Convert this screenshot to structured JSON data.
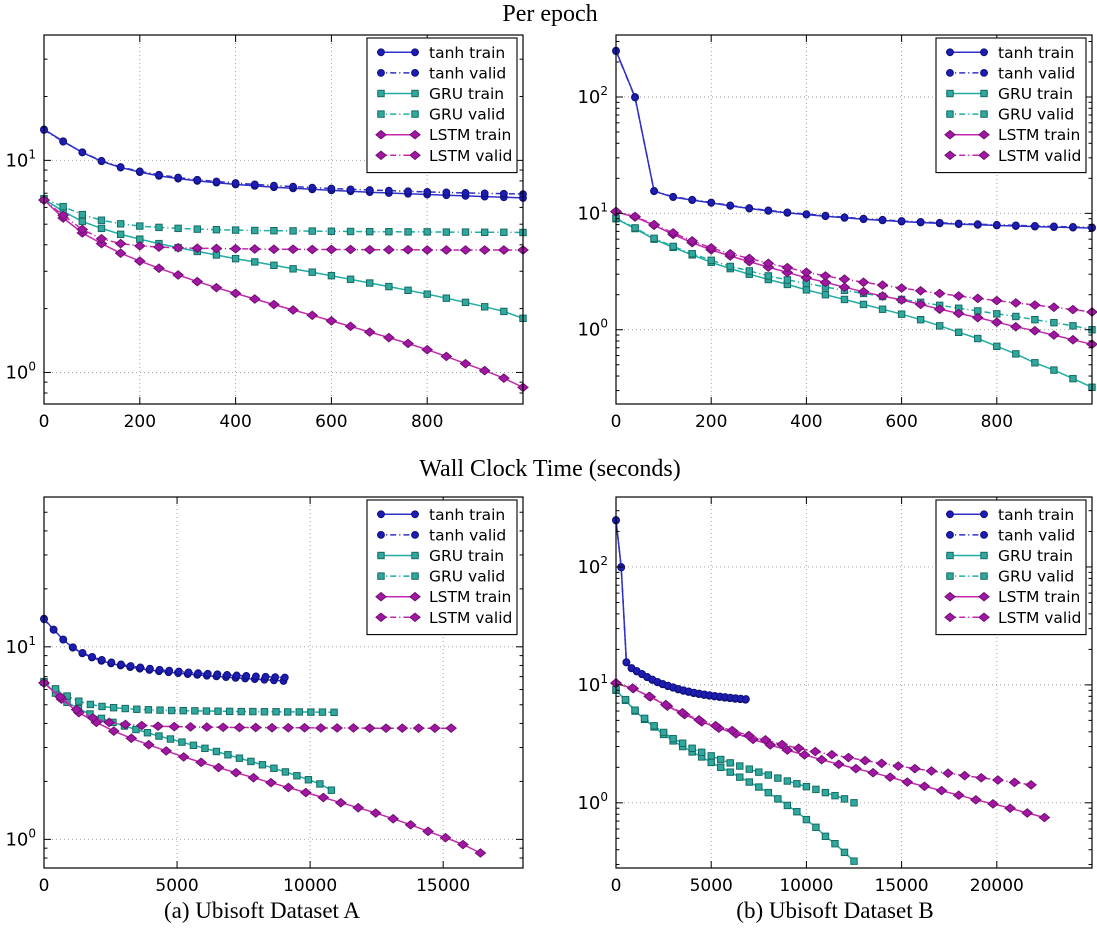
{
  "titles": {
    "per_epoch": "Per epoch",
    "wall_clock": "Wall Clock Time (seconds)"
  },
  "captions": {
    "a": "(a) Ubisoft Dataset A",
    "b": "(b) Ubisoft Dataset B"
  },
  "palette": {
    "tanh": {
      "line": "#3030c8",
      "fill": "#1d1db4",
      "edge": "#101078"
    },
    "gru": {
      "line": "#20ada3",
      "fill": "#30a89e",
      "edge": "#156b64"
    },
    "lstm": {
      "line": "#c428ae",
      "fill": "#a117a3",
      "edge": "#70106f"
    }
  },
  "legend_labels": [
    "tanh train",
    "tanh valid",
    "GRU train",
    "GRU valid",
    "LSTM train",
    "LSTM valid"
  ],
  "chart_data": [
    {
      "id": "tl",
      "type": "line",
      "row_title": "Per epoch",
      "dataset": "Ubisoft Dataset A",
      "x_unit": "epochs",
      "x_max": 1000,
      "x_ticks": [
        0,
        200,
        400,
        600,
        800
      ],
      "y_scale": "log",
      "y_min": 0.71,
      "y_max": 39,
      "y_tick_decades": [
        0,
        1
      ],
      "grid": true,
      "legend_position": "upper right",
      "series": [
        {
          "label": "tanh train",
          "model": "tanh",
          "split": "train",
          "marker": "circle",
          "line": "solid",
          "x_step": 40,
          "y": [
            14.0,
            12.3,
            10.9,
            9.9,
            9.25,
            8.8,
            8.45,
            8.2,
            8.0,
            7.85,
            7.7,
            7.58,
            7.47,
            7.38,
            7.3,
            7.22,
            7.15,
            7.08,
            7.02,
            6.96,
            6.9,
            6.85,
            6.8,
            6.75,
            6.7,
            6.65
          ]
        },
        {
          "label": "tanh valid",
          "model": "tanh",
          "split": "valid",
          "marker": "circle",
          "line": "dashdot",
          "x_step": 40,
          "y": [
            13.9,
            12.25,
            10.92,
            9.95,
            9.3,
            8.87,
            8.55,
            8.3,
            8.1,
            7.95,
            7.82,
            7.7,
            7.6,
            7.52,
            7.44,
            7.37,
            7.3,
            7.25,
            7.2,
            7.15,
            7.1,
            7.06,
            7.02,
            6.99,
            6.96,
            6.93
          ]
        },
        {
          "label": "GRU train",
          "model": "gru",
          "split": "train",
          "marker": "square",
          "line": "solid",
          "x_step": 40,
          "y": [
            6.55,
            5.75,
            5.15,
            4.78,
            4.48,
            4.25,
            4.05,
            3.88,
            3.72,
            3.58,
            3.44,
            3.32,
            3.2,
            3.08,
            2.97,
            2.86,
            2.75,
            2.64,
            2.54,
            2.44,
            2.34,
            2.24,
            2.14,
            2.04,
            1.94,
            1.8
          ]
        },
        {
          "label": "GRU valid",
          "model": "gru",
          "split": "valid",
          "marker": "square",
          "line": "dashdot",
          "x_step": 40,
          "y": [
            6.6,
            6.05,
            5.55,
            5.22,
            5.02,
            4.9,
            4.83,
            4.78,
            4.74,
            4.71,
            4.69,
            4.67,
            4.66,
            4.65,
            4.64,
            4.63,
            4.62,
            4.61,
            4.61,
            4.6,
            4.6,
            4.59,
            4.59,
            4.58,
            4.58,
            4.57
          ]
        },
        {
          "label": "LSTM train",
          "model": "lstm",
          "split": "train",
          "marker": "diamond",
          "line": "solid",
          "x_step": 40,
          "y": [
            6.5,
            5.35,
            4.55,
            4.05,
            3.65,
            3.35,
            3.1,
            2.88,
            2.68,
            2.51,
            2.36,
            2.22,
            2.09,
            1.97,
            1.86,
            1.75,
            1.65,
            1.55,
            1.46,
            1.37,
            1.28,
            1.19,
            1.1,
            1.02,
            0.94,
            0.85
          ]
        },
        {
          "label": "LSTM valid",
          "model": "lstm",
          "split": "valid",
          "marker": "diamond",
          "line": "dashdot",
          "x_step": 40,
          "y": [
            6.5,
            5.5,
            4.72,
            4.27,
            4.05,
            3.95,
            3.9,
            3.87,
            3.85,
            3.84,
            3.83,
            3.82,
            3.81,
            3.81,
            3.8,
            3.8,
            3.8,
            3.79,
            3.79,
            3.79,
            3.78,
            3.78,
            3.78,
            3.78,
            3.78,
            3.78
          ]
        }
      ]
    },
    {
      "id": "tr",
      "type": "line",
      "row_title": "Per epoch",
      "dataset": "Ubisoft Dataset B",
      "x_unit": "epochs",
      "x_max": 1000,
      "x_ticks": [
        0,
        200,
        400,
        600,
        800
      ],
      "y_scale": "log",
      "y_min": 0.23,
      "y_max": 341,
      "y_tick_decades": [
        0,
        1,
        2
      ],
      "grid": true,
      "legend_position": "upper right",
      "series": [
        {
          "label": "tanh train",
          "model": "tanh",
          "split": "train",
          "marker": "circle",
          "line": "solid",
          "x_step": 40,
          "y": [
            250,
            100,
            15.5,
            13.8,
            13.0,
            12.3,
            11.6,
            11.0,
            10.5,
            10.1,
            9.75,
            9.45,
            9.15,
            8.9,
            8.7,
            8.5,
            8.35,
            8.2,
            8.08,
            7.97,
            7.87,
            7.78,
            7.7,
            7.62,
            7.55,
            7.48
          ]
        },
        {
          "label": "tanh valid",
          "model": "tanh",
          "split": "valid",
          "marker": "circle",
          "line": "dashdot",
          "x_step": 40,
          "y": [
            248,
            99,
            15.6,
            13.9,
            13.1,
            12.4,
            11.7,
            11.1,
            10.6,
            10.2,
            9.85,
            9.55,
            9.25,
            9.0,
            8.8,
            8.6,
            8.45,
            8.3,
            8.18,
            8.07,
            7.97,
            7.88,
            7.8,
            7.72,
            7.65,
            7.58
          ]
        },
        {
          "label": "GRU train",
          "model": "gru",
          "split": "train",
          "marker": "square",
          "line": "solid",
          "x_step": 40,
          "y": [
            9.0,
            7.4,
            6.0,
            5.1,
            4.4,
            3.8,
            3.35,
            3.0,
            2.7,
            2.45,
            2.2,
            2.0,
            1.82,
            1.65,
            1.5,
            1.36,
            1.22,
            1.08,
            0.95,
            0.84,
            0.72,
            0.62,
            0.52,
            0.45,
            0.38,
            0.32
          ]
        },
        {
          "label": "GRU valid",
          "model": "gru",
          "split": "valid",
          "marker": "square",
          "line": "dashdot",
          "x_step": 40,
          "y": [
            9.1,
            7.5,
            6.1,
            5.2,
            4.5,
            3.95,
            3.5,
            3.2,
            2.9,
            2.68,
            2.5,
            2.33,
            2.18,
            2.05,
            1.93,
            1.82,
            1.72,
            1.62,
            1.53,
            1.45,
            1.37,
            1.3,
            1.22,
            1.15,
            1.08,
            1.0
          ]
        },
        {
          "label": "LSTM train",
          "model": "lstm",
          "split": "train",
          "marker": "diamond",
          "line": "solid",
          "x_step": 40,
          "y": [
            10.3,
            9.3,
            7.9,
            6.6,
            5.6,
            4.85,
            4.3,
            3.85,
            3.45,
            3.1,
            2.8,
            2.55,
            2.32,
            2.12,
            1.95,
            1.8,
            1.65,
            1.5,
            1.38,
            1.27,
            1.16,
            1.06,
            0.98,
            0.9,
            0.82,
            0.75
          ]
        },
        {
          "label": "LSTM valid",
          "model": "lstm",
          "split": "valid",
          "marker": "diamond",
          "line": "dashdot",
          "x_step": 40,
          "y": [
            10.4,
            9.4,
            8.0,
            6.8,
            5.8,
            5.05,
            4.5,
            4.1,
            3.72,
            3.42,
            3.12,
            2.9,
            2.72,
            2.56,
            2.42,
            2.28,
            2.16,
            2.05,
            1.95,
            1.86,
            1.78,
            1.7,
            1.63,
            1.56,
            1.49,
            1.42
          ]
        }
      ]
    },
    {
      "id": "bl",
      "type": "line",
      "row_title": "Wall Clock Time (seconds)",
      "dataset": "Ubisoft Dataset A",
      "x_unit": "seconds",
      "x_max": 18000,
      "x_ticks": [
        0,
        5000,
        10000,
        15000
      ],
      "y_scale": "log",
      "y_min": 0.71,
      "y_max": 60,
      "y_tick_decades": [
        0,
        1
      ],
      "grid": true,
      "legend_position": "upper right",
      "series": [
        {
          "label": "tanh train",
          "model": "tanh",
          "split": "train",
          "marker": "circle",
          "line": "solid",
          "x_step": 360,
          "y": [
            14.0,
            12.3,
            10.9,
            9.9,
            9.25,
            8.8,
            8.45,
            8.2,
            8.0,
            7.85,
            7.7,
            7.58,
            7.47,
            7.38,
            7.3,
            7.22,
            7.15,
            7.08,
            7.02,
            6.96,
            6.9,
            6.85,
            6.8,
            6.75,
            6.7,
            6.65
          ]
        },
        {
          "label": "tanh valid",
          "model": "tanh",
          "split": "valid",
          "marker": "circle",
          "line": "dashdot",
          "x_step": 362,
          "y": [
            13.9,
            12.25,
            10.92,
            9.95,
            9.3,
            8.87,
            8.55,
            8.3,
            8.1,
            7.95,
            7.82,
            7.7,
            7.6,
            7.52,
            7.44,
            7.37,
            7.3,
            7.25,
            7.2,
            7.15,
            7.1,
            7.06,
            7.02,
            6.99,
            6.96,
            6.93
          ]
        },
        {
          "label": "GRU train",
          "model": "gru",
          "split": "train",
          "marker": "square",
          "line": "solid",
          "x_step": 432,
          "y": [
            6.55,
            5.75,
            5.15,
            4.78,
            4.48,
            4.25,
            4.05,
            3.88,
            3.72,
            3.58,
            3.44,
            3.32,
            3.2,
            3.08,
            2.97,
            2.86,
            2.75,
            2.64,
            2.54,
            2.44,
            2.34,
            2.24,
            2.14,
            2.04,
            1.94,
            1.8
          ]
        },
        {
          "label": "GRU valid",
          "model": "gru",
          "split": "valid",
          "marker": "square",
          "line": "dashdot",
          "x_step": 436,
          "y": [
            6.6,
            6.05,
            5.55,
            5.22,
            5.02,
            4.9,
            4.83,
            4.78,
            4.74,
            4.71,
            4.69,
            4.67,
            4.66,
            4.65,
            4.64,
            4.63,
            4.62,
            4.61,
            4.61,
            4.6,
            4.6,
            4.59,
            4.59,
            4.58,
            4.58,
            4.57
          ]
        },
        {
          "label": "LSTM train",
          "model": "lstm",
          "split": "train",
          "marker": "diamond",
          "line": "solid",
          "x_step": 656,
          "y": [
            6.5,
            5.35,
            4.55,
            4.05,
            3.65,
            3.35,
            3.1,
            2.88,
            2.68,
            2.51,
            2.36,
            2.22,
            2.09,
            1.97,
            1.86,
            1.75,
            1.65,
            1.55,
            1.46,
            1.37,
            1.28,
            1.19,
            1.1,
            1.02,
            0.94,
            0.85
          ]
        },
        {
          "label": "LSTM valid",
          "model": "lstm",
          "split": "valid",
          "marker": "diamond",
          "line": "dashdot",
          "x_step": 612,
          "y": [
            6.5,
            5.5,
            4.72,
            4.27,
            4.05,
            3.95,
            3.9,
            3.87,
            3.85,
            3.84,
            3.83,
            3.82,
            3.81,
            3.81,
            3.8,
            3.8,
            3.8,
            3.79,
            3.79,
            3.79,
            3.78,
            3.78,
            3.78,
            3.78,
            3.78,
            3.78
          ]
        }
      ]
    },
    {
      "id": "br",
      "type": "line",
      "row_title": "Wall Clock Time (seconds)",
      "dataset": "Ubisoft Dataset B",
      "x_unit": "seconds",
      "x_max": 25000,
      "x_ticks": [
        0,
        5000,
        10000,
        15000,
        20000
      ],
      "y_scale": "log",
      "y_min": 0.28,
      "y_max": 392,
      "y_tick_decades": [
        0,
        1,
        2
      ],
      "grid": true,
      "legend_position": "upper right",
      "series": [
        {
          "label": "tanh train",
          "model": "tanh",
          "split": "train",
          "marker": "circle",
          "line": "solid",
          "x_step": 272,
          "y": [
            250,
            100,
            15.5,
            13.8,
            13.0,
            12.3,
            11.6,
            11.0,
            10.5,
            10.1,
            9.75,
            9.45,
            9.15,
            8.9,
            8.7,
            8.5,
            8.35,
            8.2,
            8.08,
            7.97,
            7.87,
            7.78,
            7.7,
            7.62,
            7.55,
            7.48
          ]
        },
        {
          "label": "tanh valid",
          "model": "tanh",
          "split": "valid",
          "marker": "circle",
          "line": "dashdot",
          "x_step": 273,
          "y": [
            248,
            99,
            15.6,
            13.9,
            13.1,
            12.4,
            11.7,
            11.1,
            10.6,
            10.2,
            9.85,
            9.55,
            9.25,
            9.0,
            8.8,
            8.6,
            8.45,
            8.3,
            8.18,
            8.07,
            7.97,
            7.88,
            7.8,
            7.72,
            7.65,
            7.58
          ]
        },
        {
          "label": "GRU train",
          "model": "gru",
          "split": "train",
          "marker": "square",
          "line": "solid",
          "x_step": 500,
          "y": [
            9.0,
            7.4,
            6.0,
            5.1,
            4.4,
            3.8,
            3.35,
            3.0,
            2.7,
            2.45,
            2.2,
            2.0,
            1.82,
            1.65,
            1.5,
            1.36,
            1.22,
            1.08,
            0.95,
            0.84,
            0.72,
            0.62,
            0.52,
            0.45,
            0.38,
            0.32
          ]
        },
        {
          "label": "GRU valid",
          "model": "gru",
          "split": "valid",
          "marker": "square",
          "line": "dashdot",
          "x_step": 500,
          "y": [
            9.1,
            7.5,
            6.1,
            5.2,
            4.5,
            3.95,
            3.5,
            3.2,
            2.9,
            2.68,
            2.5,
            2.33,
            2.18,
            2.05,
            1.93,
            1.82,
            1.72,
            1.62,
            1.53,
            1.45,
            1.37,
            1.3,
            1.22,
            1.15,
            1.08,
            1.0
          ]
        },
        {
          "label": "LSTM train",
          "model": "lstm",
          "split": "train",
          "marker": "diamond",
          "line": "solid",
          "x_step": 900,
          "y": [
            10.3,
            9.3,
            7.9,
            6.6,
            5.6,
            4.85,
            4.3,
            3.85,
            3.45,
            3.1,
            2.8,
            2.55,
            2.32,
            2.12,
            1.95,
            1.8,
            1.65,
            1.5,
            1.38,
            1.27,
            1.16,
            1.06,
            0.98,
            0.9,
            0.82,
            0.75
          ]
        },
        {
          "label": "LSTM valid",
          "model": "lstm",
          "split": "valid",
          "marker": "diamond",
          "line": "dashdot",
          "x_step": 872,
          "y": [
            10.4,
            9.4,
            8.0,
            6.8,
            5.8,
            5.05,
            4.5,
            4.1,
            3.72,
            3.42,
            3.12,
            2.9,
            2.72,
            2.56,
            2.42,
            2.28,
            2.16,
            2.05,
            1.95,
            1.86,
            1.78,
            1.7,
            1.63,
            1.56,
            1.49,
            1.42
          ]
        }
      ]
    }
  ]
}
